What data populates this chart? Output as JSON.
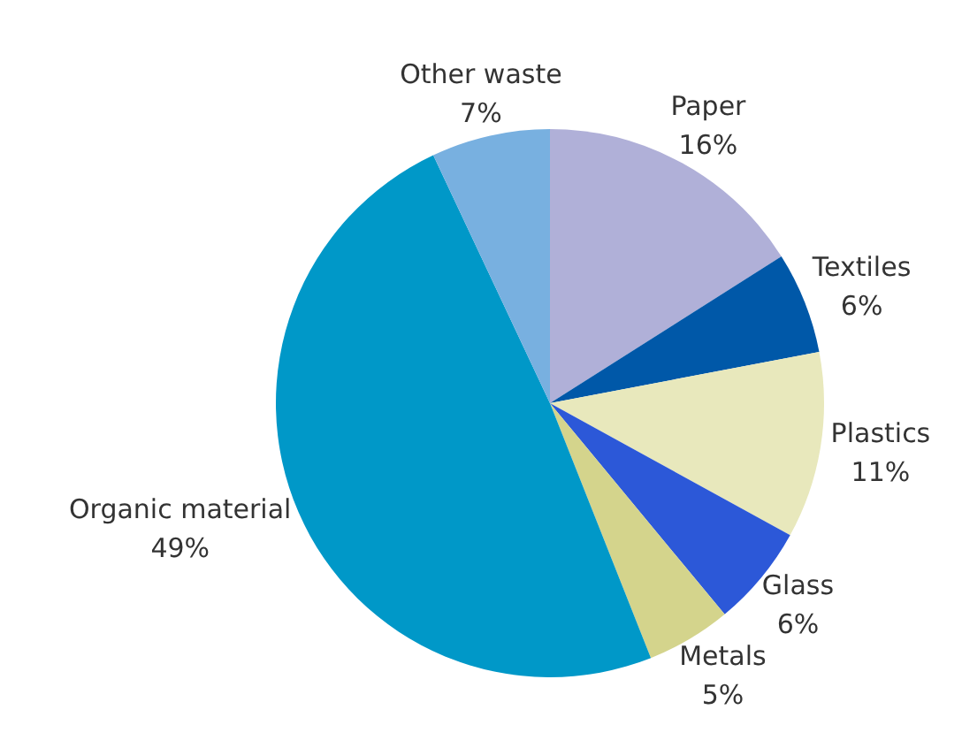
{
  "chart_data": {
    "type": "pie",
    "categories": [
      "Paper",
      "Textiles",
      "Plastics",
      "Glass",
      "Metals",
      "Organic material",
      "Other waste"
    ],
    "values": [
      16,
      6,
      11,
      6,
      5,
      49,
      7
    ],
    "value_labels": [
      "16%",
      "6%",
      "11%",
      "6%",
      "5%",
      "49%",
      "7%"
    ],
    "colors": [
      "#b0b0d8",
      "#0058a8",
      "#e8e8bc",
      "#2c58d8",
      "#d4d48c",
      "#0098c8",
      "#78b0e0"
    ]
  }
}
